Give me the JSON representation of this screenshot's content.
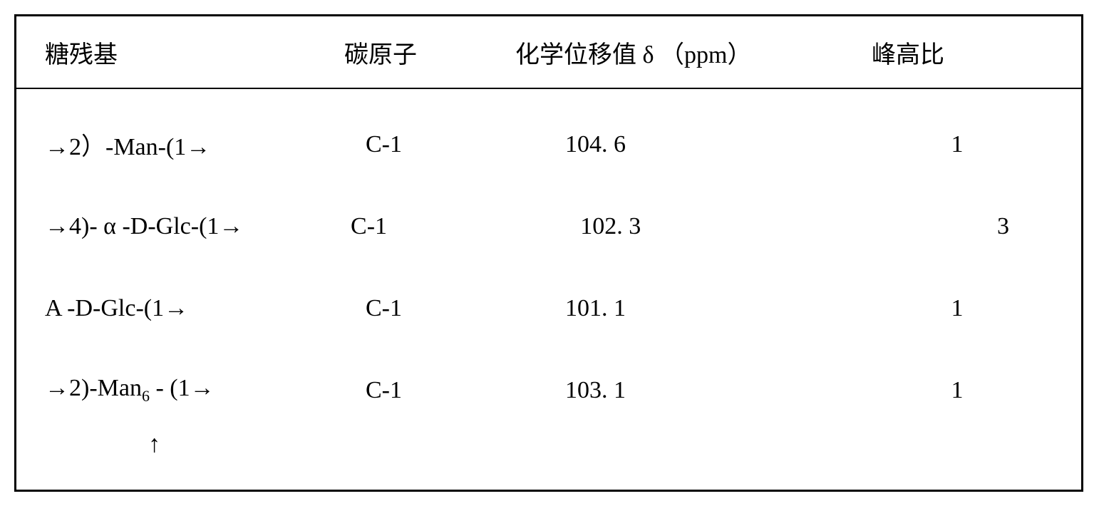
{
  "table": {
    "border_color": "#000000",
    "background_color": "#ffffff",
    "text_color": "#000000",
    "font_size_pt": 26,
    "headers": {
      "residue": "糖残基",
      "carbon": "碳原子",
      "shift": "化学位移值 δ （ppm）",
      "ratio": "峰高比"
    },
    "rows": [
      {
        "residue_prefix": "→2）-Man-(1→",
        "carbon": "C-1",
        "shift": "104. 6",
        "ratio": "1"
      },
      {
        "residue_prefix": "→4)- α -D-Glc-(1→",
        "carbon": "C-1",
        "shift": "102. 3",
        "ratio": "3"
      },
      {
        "residue_prefix": "A -D-Glc-(1→",
        "carbon": "C-1",
        "shift": "101. 1",
        "ratio": "1"
      },
      {
        "residue_prefix": "→2)-Man",
        "residue_sub": "6",
        "residue_suffix": " - (1→",
        "carbon": "C-1",
        "shift": "103. 1",
        "ratio": "1"
      }
    ],
    "arrow_glyph": "↑"
  }
}
